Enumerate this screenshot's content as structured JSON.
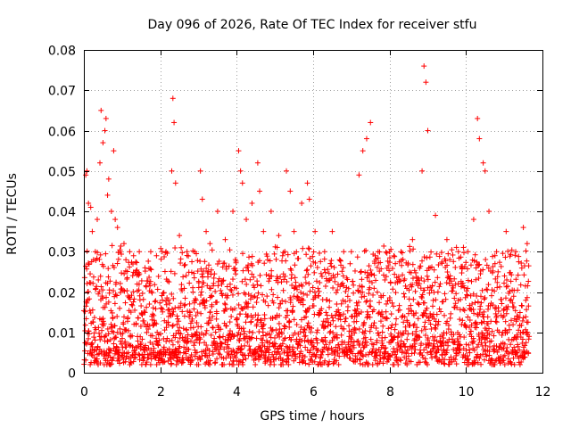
{
  "chart_data": {
    "type": "scatter",
    "title": "Day 096 of 2026, Rate Of TEC Index for receiver stfu",
    "xlabel": "GPS time / hours",
    "ylabel": "ROTI / TECUs",
    "xlim": [
      0,
      12
    ],
    "ylim": [
      0,
      0.08
    ],
    "xticks": [
      0,
      2,
      4,
      6,
      8,
      10,
      12
    ],
    "xtick_labels": [
      "0",
      "2",
      "4",
      "6",
      "8",
      "10",
      "12"
    ],
    "yticks": [
      0,
      0.01,
      0.02,
      0.03,
      0.04,
      0.05,
      0.06,
      0.07,
      0.08
    ],
    "ytick_labels": [
      "0",
      "0.01",
      "0.02",
      "0.03",
      "0.04",
      "0.05",
      "0.06",
      "0.07",
      "0.08"
    ],
    "grid": true,
    "marker": "+",
    "color": "#ff0000",
    "x_data_extent": [
      0,
      11.65
    ],
    "bulk_range": [
      0.003,
      0.03
    ],
    "series": [
      {
        "name": "ROTI",
        "x": [
          0.05,
          0.08,
          0.12,
          0.18,
          0.22,
          0.3,
          0.35,
          0.42,
          0.45,
          0.5,
          0.55,
          0.58,
          0.62,
          0.65,
          0.72,
          0.78,
          0.82,
          0.88,
          0.95,
          1.05,
          1.1,
          1.2,
          1.3,
          1.45,
          1.6,
          1.75,
          1.9,
          2.05,
          2.15,
          2.3,
          2.33,
          2.36,
          2.4,
          2.5,
          2.7,
          2.9,
          3.05,
          3.1,
          3.2,
          3.3,
          3.5,
          3.7,
          3.9,
          4.05,
          4.1,
          4.15,
          4.25,
          4.4,
          4.55,
          4.6,
          4.7,
          4.9,
          5.1,
          5.3,
          5.4,
          5.5,
          5.7,
          5.85,
          5.9,
          6.05,
          6.3,
          6.5,
          6.8,
          7.0,
          7.2,
          7.3,
          7.4,
          7.5,
          7.7,
          8.0,
          8.3,
          8.6,
          8.85,
          8.9,
          8.95,
          9.0,
          9.2,
          9.5,
          9.8,
          10.05,
          10.2,
          10.3,
          10.35,
          10.45,
          10.5,
          10.6,
          10.8,
          11.05,
          11.3,
          11.5,
          11.6
        ],
        "y": [
          0.049,
          0.05,
          0.042,
          0.041,
          0.035,
          0.03,
          0.038,
          0.052,
          0.065,
          0.057,
          0.06,
          0.063,
          0.044,
          0.048,
          0.04,
          0.055,
          0.038,
          0.036,
          0.03,
          0.032,
          0.028,
          0.03,
          0.029,
          0.03,
          0.026,
          0.03,
          0.029,
          0.03,
          0.03,
          0.05,
          0.068,
          0.062,
          0.047,
          0.034,
          0.03,
          0.03,
          0.05,
          0.043,
          0.035,
          0.032,
          0.04,
          0.033,
          0.04,
          0.055,
          0.05,
          0.047,
          0.038,
          0.042,
          0.052,
          0.045,
          0.035,
          0.04,
          0.034,
          0.05,
          0.045,
          0.035,
          0.042,
          0.047,
          0.043,
          0.035,
          0.03,
          0.035,
          0.03,
          0.03,
          0.049,
          0.055,
          0.058,
          0.062,
          0.03,
          0.03,
          0.03,
          0.033,
          0.05,
          0.076,
          0.072,
          0.06,
          0.039,
          0.033,
          0.03,
          0.03,
          0.038,
          0.063,
          0.058,
          0.052,
          0.05,
          0.04,
          0.03,
          0.035,
          0.03,
          0.036,
          0.032
        ]
      }
    ]
  }
}
